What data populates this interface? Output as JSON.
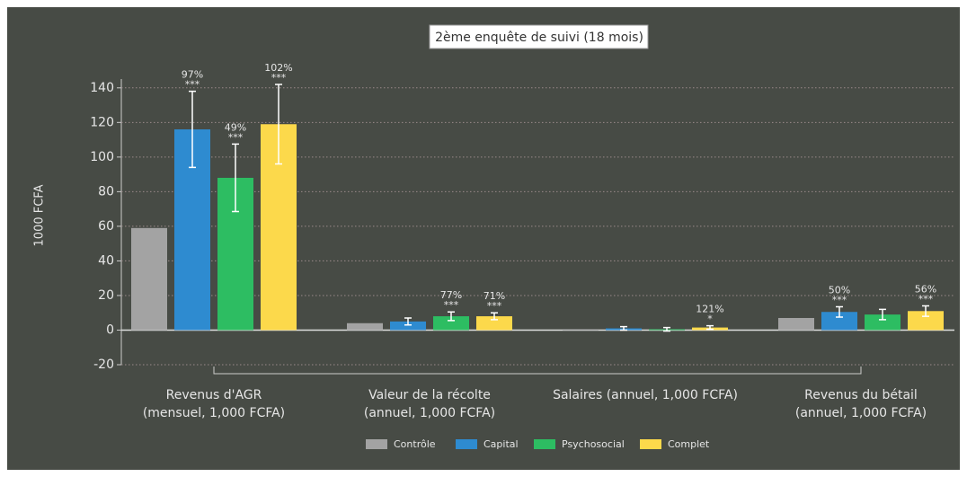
{
  "chart_data": {
    "type": "bar",
    "title": "2ème enquête de suivi (18 mois)",
    "y_label": "1000 FCFA",
    "categories": [
      [
        "Revenus d'AGR",
        "(mensuel, 1,000 FCFA)"
      ],
      [
        "Valeur de la récolte",
        "(annuel, 1,000 FCFA)"
      ],
      [
        "Salaires (annuel, 1,000 FCFA)"
      ],
      [
        "Revenus du bétail",
        "(annuel, 1,000 FCFA)"
      ]
    ],
    "series": [
      {
        "name": "Contrôle",
        "color": "#a3a3a3",
        "values": [
          59,
          4,
          0.5,
          7
        ],
        "errors": [
          null,
          null,
          null,
          null
        ],
        "percent": [
          null,
          null,
          null,
          null
        ],
        "stars": [
          null,
          null,
          null,
          null
        ]
      },
      {
        "name": "Capital",
        "color": "#2e8bd0",
        "values": [
          116,
          5,
          1,
          10.5
        ],
        "errors": [
          22,
          2,
          1,
          3
        ],
        "percent": [
          "97%",
          null,
          null,
          "50%"
        ],
        "stars": [
          "***",
          null,
          null,
          "***"
        ]
      },
      {
        "name": "Psychosocial",
        "color": "#2dbd62",
        "values": [
          88,
          8,
          0.5,
          9
        ],
        "errors": [
          19.5,
          2.5,
          1,
          3
        ],
        "percent": [
          "49%",
          "77%",
          null,
          null
        ],
        "stars": [
          "***",
          "***",
          null,
          null
        ]
      },
      {
        "name": "Complet",
        "color": "#fcd94b",
        "values": [
          119,
          8,
          1.5,
          11
        ],
        "errors": [
          23,
          2,
          1,
          3
        ],
        "percent": [
          "102%",
          "71%",
          "121%",
          "56%"
        ],
        "stars": [
          "***",
          "***",
          "*",
          "***"
        ]
      }
    ],
    "ylim": [
      -20,
      140
    ],
    "yticks": [
      -20,
      0,
      20,
      40,
      60,
      80,
      100,
      120,
      140
    ],
    "grid": true
  }
}
